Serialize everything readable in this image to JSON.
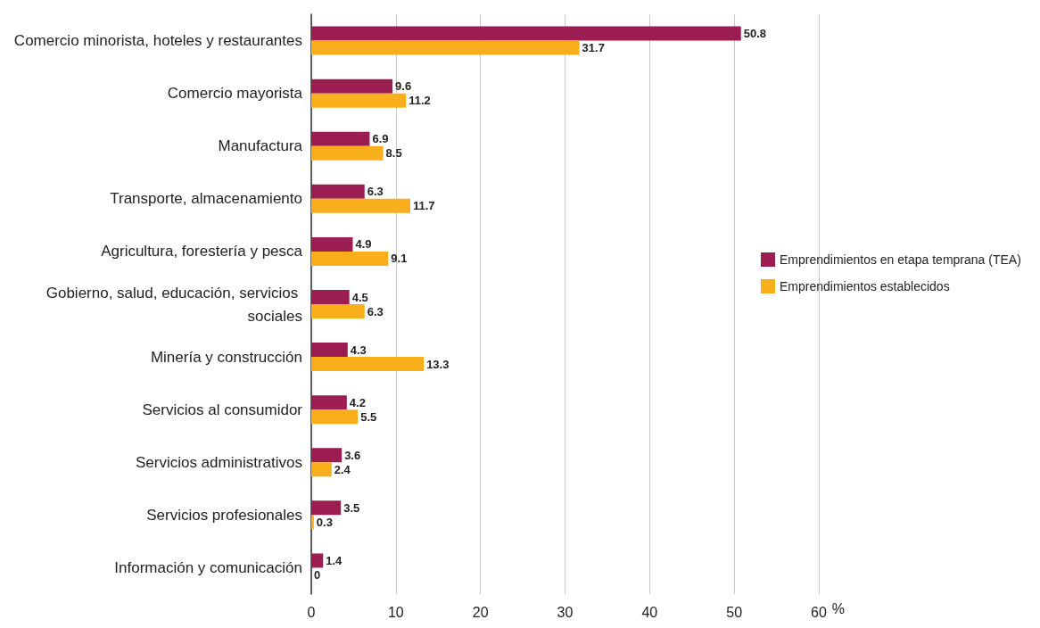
{
  "chart_data": {
    "type": "bar",
    "orientation": "horizontal",
    "xlabel": "%",
    "categories": [
      "Comercio minorista, hoteles y restaurantes",
      "Comercio mayorista",
      "Manufactura",
      "Transporte, almacenamiento",
      "Agricultura, forestería y pesca",
      "Gobierno, salud, educación, servicios sociales",
      "Minería y construcción",
      "Servicios al consumidor",
      "Servicios administrativos",
      "Servicios profesionales",
      "Información y comunicación"
    ],
    "series": [
      {
        "name": "Emprendimientos en etapa temprana (TEA)",
        "color": "#9b1d52",
        "values": [
          50.8,
          9.6,
          6.9,
          6.3,
          4.9,
          4.5,
          4.3,
          4.2,
          3.6,
          3.5,
          1.4
        ]
      },
      {
        "name": "Emprendimientos establecidos",
        "color": "#f9ae1b",
        "values": [
          31.7,
          11.2,
          8.5,
          11.7,
          9.1,
          6.3,
          13.3,
          5.5,
          2.4,
          0.3,
          0
        ]
      }
    ],
    "xlim": [
      0,
      60
    ],
    "xticks": [
      0,
      10,
      20,
      30,
      40,
      50,
      60
    ],
    "grid": "x",
    "legend": "right",
    "data_labels": true
  }
}
